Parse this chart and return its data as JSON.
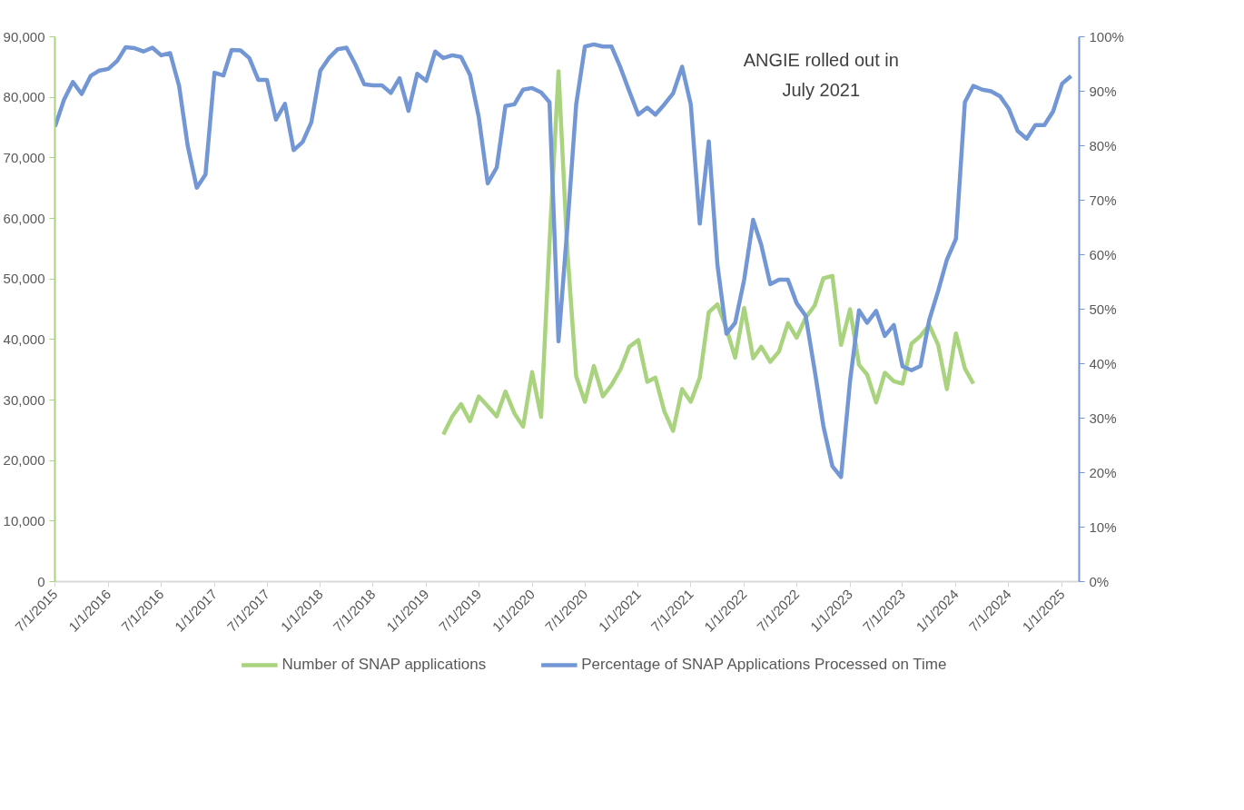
{
  "chart_data": {
    "type": "line",
    "xlim": [
      "2015-07-01",
      "2025-03-01"
    ],
    "xticks": [
      {
        "value": "2015-07-01",
        "label": "7/1/2015"
      },
      {
        "value": "2016-01-01",
        "label": "1/1/2016"
      },
      {
        "value": "2016-07-01",
        "label": "7/1/2016"
      },
      {
        "value": "2017-01-01",
        "label": "1/1/2017"
      },
      {
        "value": "2017-07-01",
        "label": "7/1/2017"
      },
      {
        "value": "2018-01-01",
        "label": "1/1/2018"
      },
      {
        "value": "2018-07-01",
        "label": "7/1/2018"
      },
      {
        "value": "2019-01-01",
        "label": "1/1/2019"
      },
      {
        "value": "2019-07-01",
        "label": "7/1/2019"
      },
      {
        "value": "2020-01-01",
        "label": "1/1/2020"
      },
      {
        "value": "2020-07-01",
        "label": "7/1/2020"
      },
      {
        "value": "2021-01-01",
        "label": "1/1/2021"
      },
      {
        "value": "2021-07-01",
        "label": "7/1/2021"
      },
      {
        "value": "2022-01-01",
        "label": "1/1/2022"
      },
      {
        "value": "2022-07-01",
        "label": "7/1/2022"
      },
      {
        "value": "2023-01-01",
        "label": "1/1/2023"
      },
      {
        "value": "2023-07-01",
        "label": "7/1/2023"
      },
      {
        "value": "2024-01-01",
        "label": "1/1/2024"
      },
      {
        "value": "2024-07-01",
        "label": "7/1/2024"
      },
      {
        "value": "2025-01-01",
        "label": "1/1/2025"
      }
    ],
    "ylim": [
      0,
      90000
    ],
    "yticks": [
      {
        "value": 0,
        "label": "0"
      },
      {
        "value": 10000,
        "label": "10,000"
      },
      {
        "value": 20000,
        "label": "20,000"
      },
      {
        "value": 30000,
        "label": "30,000"
      },
      {
        "value": 40000,
        "label": "40,000"
      },
      {
        "value": 50000,
        "label": "50,000"
      },
      {
        "value": 60000,
        "label": "60,000"
      },
      {
        "value": 70000,
        "label": "70,000"
      },
      {
        "value": 80000,
        "label": "80,000"
      },
      {
        "value": 90000,
        "label": "90,000"
      }
    ],
    "y2lim": [
      0,
      100
    ],
    "y2ticks": [
      {
        "value": 0,
        "label": "0%"
      },
      {
        "value": 10,
        "label": "10%"
      },
      {
        "value": 20,
        "label": "20%"
      },
      {
        "value": 30,
        "label": "30%"
      },
      {
        "value": 40,
        "label": "40%"
      },
      {
        "value": 50,
        "label": "50%"
      },
      {
        "value": 60,
        "label": "60%"
      },
      {
        "value": 70,
        "label": "70%"
      },
      {
        "value": 80,
        "label": "80%"
      },
      {
        "value": 90,
        "label": "90%"
      },
      {
        "value": 100,
        "label": "100%"
      }
    ],
    "grid": false,
    "legend": "bottom",
    "line_style": "solid",
    "annotations": [
      "ANGIE rolled out in\nJuly 2021"
    ],
    "series": [
      {
        "name": "Number of SNAP applications",
        "color": "#a9d37e",
        "x": [
          "2019-03",
          "2019-04",
          "2019-05",
          "2019-06",
          "2019-07",
          "2019-08",
          "2019-09",
          "2019-10",
          "2019-11",
          "2019-12",
          "2020-01",
          "2020-02",
          "2020-03",
          "2020-04",
          "2020-05",
          "2020-06",
          "2020-07",
          "2020-08",
          "2020-09",
          "2020-10",
          "2020-11",
          "2020-12",
          "2021-01",
          "2021-02",
          "2021-03",
          "2021-04",
          "2021-05",
          "2021-06",
          "2021-07",
          "2021-08",
          "2021-09",
          "2021-10",
          "2021-11",
          "2021-12",
          "2022-01",
          "2022-02",
          "2022-03",
          "2022-04",
          "2022-05",
          "2022-06",
          "2022-07",
          "2022-08",
          "2022-09",
          "2022-10",
          "2022-11",
          "2022-12",
          "2023-01",
          "2023-02",
          "2023-03",
          "2023-04",
          "2023-05",
          "2023-06",
          "2023-07",
          "2023-08",
          "2023-09",
          "2023-10",
          "2023-11",
          "2023-12",
          "2024-01",
          "2024-02",
          "2024-03"
        ],
        "values": [
          24300,
          27300,
          29300,
          26500,
          30600,
          29000,
          27300,
          31400,
          27800,
          25600,
          34600,
          27200,
          56000,
          84300,
          55000,
          33900,
          29700,
          35600,
          30600,
          32500,
          35100,
          38800,
          39900,
          33000,
          33700,
          28100,
          24900,
          31800,
          29700,
          33700,
          44500,
          45800,
          41800,
          37000,
          45200,
          36900,
          38800,
          36300,
          38000,
          42700,
          40300,
          43600,
          45600,
          50100,
          50500,
          39100,
          45000,
          35800,
          34200,
          29600,
          34500,
          33100,
          32700,
          39300,
          40600,
          42400,
          39100,
          31800,
          41000,
          35200,
          32700
        ]
      },
      {
        "name": "Percentage of SNAP Applications Processed on Time",
        "color": "#7297d4",
        "axis": "y2",
        "x": [
          "2015-07",
          "2015-08",
          "2015-09",
          "2015-10",
          "2015-11",
          "2015-12",
          "2016-01",
          "2016-02",
          "2016-03",
          "2016-04",
          "2016-05",
          "2016-06",
          "2016-07",
          "2016-08",
          "2016-09",
          "2016-10",
          "2016-11",
          "2016-12",
          "2017-01",
          "2017-02",
          "2017-03",
          "2017-04",
          "2017-05",
          "2017-06",
          "2017-07",
          "2017-08",
          "2017-09",
          "2017-10",
          "2017-11",
          "2017-12",
          "2018-01",
          "2018-02",
          "2018-03",
          "2018-04",
          "2018-05",
          "2018-06",
          "2018-07",
          "2018-08",
          "2018-09",
          "2018-10",
          "2018-11",
          "2018-12",
          "2019-01",
          "2019-02",
          "2019-03",
          "2019-04",
          "2019-05",
          "2019-06",
          "2019-07",
          "2019-08",
          "2019-09",
          "2019-10",
          "2019-11",
          "2019-12",
          "2020-01",
          "2020-02",
          "2020-03",
          "2020-04",
          "2020-05",
          "2020-06",
          "2020-07",
          "2020-08",
          "2020-09",
          "2020-10",
          "2020-11",
          "2020-12",
          "2021-01",
          "2021-02",
          "2021-03",
          "2021-04",
          "2021-05",
          "2021-06",
          "2021-07",
          "2021-08",
          "2021-09",
          "2021-10",
          "2021-11",
          "2021-12",
          "2022-01",
          "2022-02",
          "2022-03",
          "2022-04",
          "2022-05",
          "2022-06",
          "2022-07",
          "2022-08",
          "2022-09",
          "2022-10",
          "2022-11",
          "2022-12",
          "2023-01",
          "2023-02",
          "2023-03",
          "2023-04",
          "2023-05",
          "2023-06",
          "2023-07",
          "2023-08",
          "2023-09",
          "2023-10",
          "2023-11",
          "2023-12",
          "2024-01",
          "2024-02",
          "2024-03",
          "2024-04",
          "2024-05",
          "2024-06",
          "2024-07",
          "2024-08",
          "2024-09",
          "2024-10",
          "2024-11",
          "2024-12",
          "2025-01",
          "2025-02"
        ],
        "values": [
          83.5,
          88.4,
          91.7,
          89.5,
          92.8,
          93.8,
          94.1,
          95.6,
          98.1,
          97.9,
          97.3,
          98.0,
          96.6,
          97.0,
          91.0,
          79.9,
          72.3,
          74.7,
          93.4,
          92.9,
          97.6,
          97.5,
          96.1,
          92.1,
          92.1,
          84.8,
          87.7,
          79.2,
          80.7,
          84.3,
          93.8,
          96.2,
          97.7,
          98.0,
          95.0,
          91.3,
          91.1,
          91.1,
          89.7,
          92.4,
          86.4,
          93.2,
          91.9,
          97.3,
          96.1,
          96.6,
          96.3,
          93.0,
          85.3,
          73.1,
          76.0,
          87.3,
          87.6,
          90.3,
          90.6,
          89.8,
          88.0,
          44.1,
          64.7,
          87.6,
          98.2,
          98.6,
          98.2,
          98.2,
          94.3,
          90.0,
          85.7,
          87.0,
          85.7,
          87.6,
          89.6,
          94.5,
          87.6,
          65.7,
          80.8,
          58.1,
          45.5,
          47.5,
          55.4,
          66.4,
          61.8,
          54.6,
          55.4,
          55.4,
          51.1,
          48.8,
          38.8,
          28.6,
          21.2,
          19.2,
          36.8,
          49.8,
          47.5,
          49.7,
          45.1,
          47.1,
          39.5,
          38.8,
          39.6,
          48.0,
          53.4,
          59.1,
          62.9,
          88.0,
          91.0,
          90.3,
          90.0,
          89.1,
          86.8,
          82.7,
          81.3,
          83.8,
          83.8,
          86.3,
          91.4,
          92.8
        ]
      }
    ]
  }
}
